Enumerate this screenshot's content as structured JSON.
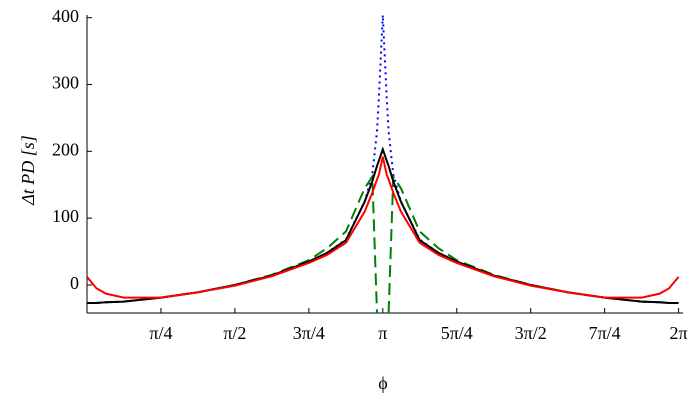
{
  "chart_data": {
    "type": "line",
    "xlabel": "ϕ",
    "ylabel": "Δt PD [s]",
    "x": [
      0,
      0.1,
      0.2,
      0.39,
      0.785,
      1.18,
      1.571,
      1.96,
      2.356,
      2.55,
      2.75,
      2.95,
      3.03,
      3.08,
      3.1,
      3.1416,
      3.1832,
      3.2032,
      3.2532,
      3.3332,
      3.5332,
      3.7332,
      3.927,
      4.323,
      4.712,
      5.103,
      5.498,
      5.893,
      6.083,
      6.183,
      6.283
    ],
    "series": [
      {
        "name": "blue",
        "color": "#0000ff",
        "style": "dotted",
        "values": [
          -27,
          -27,
          -26,
          -25,
          -19,
          -11,
          0,
          14,
          35,
          48,
          68,
          125,
          165,
          230,
          280,
          404,
          280,
          230,
          165,
          125,
          68,
          48,
          35,
          14,
          0,
          -11,
          -19,
          -25,
          -26,
          -27,
          -27
        ]
      },
      {
        "name": "green",
        "color": "#008000",
        "style": "dashed",
        "values": [
          -27,
          -27,
          -26,
          -25,
          -19,
          -11,
          0,
          15,
          37,
          55,
          80,
          145,
          162,
          -42,
          null,
          null,
          null,
          -42,
          162,
          145,
          80,
          55,
          37,
          15,
          0,
          -11,
          -19,
          -25,
          -26,
          -27,
          -27
        ]
      },
      {
        "name": "black",
        "color": "#000000",
        "style": "solid",
        "values": [
          -27,
          -27,
          -26,
          -25,
          -19,
          -11,
          0,
          14,
          35,
          48,
          67,
          125,
          155,
          178,
          186,
          203,
          186,
          178,
          155,
          125,
          67,
          48,
          35,
          14,
          0,
          -11,
          -19,
          -25,
          -26,
          -27,
          -27
        ]
      },
      {
        "name": "red",
        "color": "#ff0000",
        "style": "solid",
        "values": [
          12,
          -5,
          -13,
          -19,
          -19,
          -11,
          -1,
          13,
          33,
          45,
          63,
          110,
          138,
          158,
          165,
          192,
          165,
          158,
          138,
          110,
          63,
          45,
          33,
          13,
          -1,
          -11,
          -19,
          -19,
          -13,
          -5,
          12
        ]
      }
    ],
    "xlim": [
      0,
      6.33
    ],
    "ylim": [
      -42,
      404
    ],
    "xticks": [
      {
        "value": 0.7854,
        "label": "π/4"
      },
      {
        "value": 1.5708,
        "label": "π/2"
      },
      {
        "value": 2.3562,
        "label": "3π/4"
      },
      {
        "value": 3.1416,
        "label": "π"
      },
      {
        "value": 3.927,
        "label": "5π/4"
      },
      {
        "value": 4.7124,
        "label": "3π/2"
      },
      {
        "value": 5.4978,
        "label": "7π/4"
      },
      {
        "value": 6.2832,
        "label": "2π"
      }
    ],
    "yticks": [
      0,
      100,
      200,
      300,
      400
    ],
    "grid": false
  }
}
